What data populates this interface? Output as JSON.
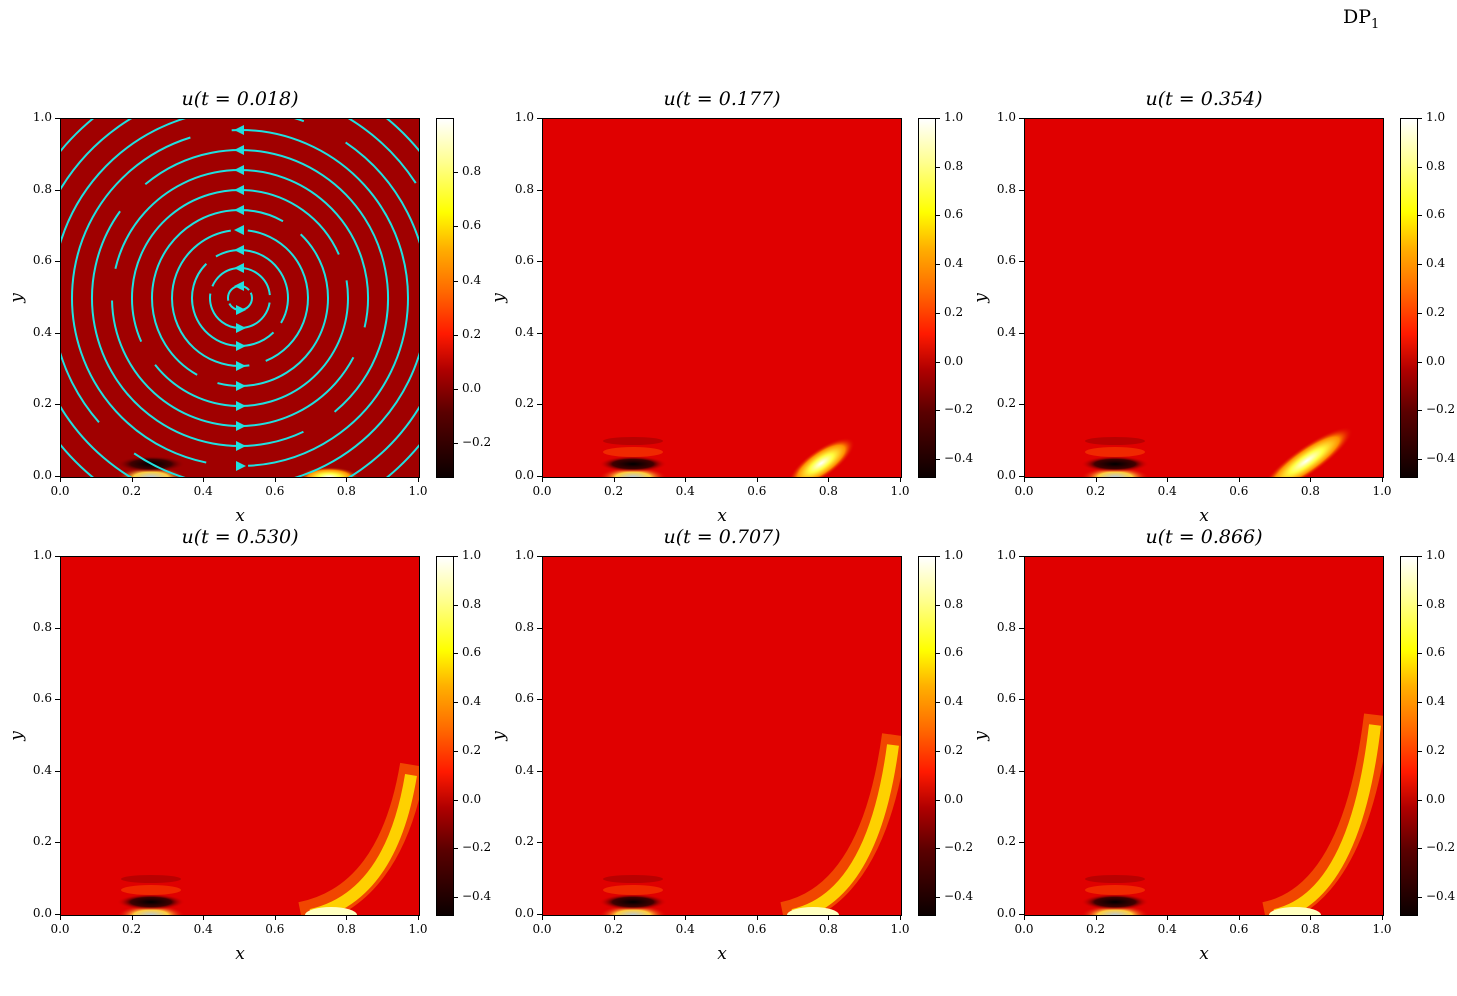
{
  "figure": {
    "suptitle": "DP",
    "suptitle_sub": "1"
  },
  "chart_data": [
    {
      "type": "heatmap",
      "title": "u(t = 0.018)",
      "xlabel": "x",
      "ylabel": "y",
      "xlim": [
        0.0,
        1.0
      ],
      "ylim": [
        0.0,
        1.0
      ],
      "xticks": [
        "0.0",
        "0.2",
        "0.4",
        "0.6",
        "0.8",
        "1.0"
      ],
      "yticks": [
        "0.0",
        "0.2",
        "0.4",
        "0.6",
        "0.8",
        "1.0"
      ],
      "colormap": "hot",
      "colorbar": {
        "range": [
          -0.32,
          1.0
        ],
        "ticks": [
          "-0.2",
          "0.0",
          "0.2",
          "0.4",
          "0.6",
          "0.8"
        ]
      },
      "overlay": "cyan streamlines, counter-clockwise rotation centered at (0.5, 0.5)",
      "features": [
        {
          "kind": "dark/bright pulse",
          "x": 0.25,
          "y": 0.0
        },
        {
          "kind": "bright pulse",
          "x": 0.75,
          "y": 0.0
        }
      ]
    },
    {
      "type": "heatmap",
      "title": "u(t = 0.177)",
      "xlabel": "x",
      "ylabel": "y",
      "xlim": [
        0.0,
        1.0
      ],
      "ylim": [
        0.0,
        1.0
      ],
      "xticks": [
        "0.0",
        "0.2",
        "0.4",
        "0.6",
        "0.8",
        "1.0"
      ],
      "yticks": [
        "0.0",
        "0.2",
        "0.4",
        "0.6",
        "0.8",
        "1.0"
      ],
      "colormap": "hot",
      "colorbar": {
        "range": [
          -0.47,
          1.0
        ],
        "ticks": [
          "-0.4",
          "-0.2",
          "0.0",
          "0.2",
          "0.4",
          "0.6",
          "0.8",
          "1.0"
        ]
      },
      "features": [
        {
          "kind": "oscillating dark/bright pulse",
          "x": 0.25,
          "y": 0.0
        },
        {
          "kind": "bright front",
          "x": 0.8,
          "y": 0.05
        }
      ]
    },
    {
      "type": "heatmap",
      "title": "u(t = 0.354)",
      "xlabel": "x",
      "ylabel": "y",
      "xlim": [
        0.0,
        1.0
      ],
      "ylim": [
        0.0,
        1.0
      ],
      "xticks": [
        "0.0",
        "0.2",
        "0.4",
        "0.6",
        "0.8",
        "1.0"
      ],
      "yticks": [
        "0.0",
        "0.2",
        "0.4",
        "0.6",
        "0.8",
        "1.0"
      ],
      "colormap": "hot",
      "colorbar": {
        "range": [
          -0.47,
          1.0
        ],
        "ticks": [
          "-0.4",
          "-0.2",
          "0.0",
          "0.2",
          "0.4",
          "0.6",
          "0.8",
          "1.0"
        ]
      },
      "features": [
        {
          "kind": "oscillating dark/bright pulse",
          "x": 0.25,
          "y": 0.0
        },
        {
          "kind": "bright front",
          "x": 0.85,
          "y": 0.08
        }
      ]
    },
    {
      "type": "heatmap",
      "title": "u(t = 0.530)",
      "xlabel": "x",
      "ylabel": "y",
      "xlim": [
        0.0,
        1.0
      ],
      "ylim": [
        0.0,
        1.0
      ],
      "xticks": [
        "0.0",
        "0.2",
        "0.4",
        "0.6",
        "0.8",
        "1.0"
      ],
      "yticks": [
        "0.0",
        "0.2",
        "0.4",
        "0.6",
        "0.8",
        "1.0"
      ],
      "colormap": "hot",
      "colorbar": {
        "range": [
          -0.47,
          1.0
        ],
        "ticks": [
          "-0.4",
          "-0.2",
          "0.0",
          "0.2",
          "0.4",
          "0.6",
          "0.8",
          "1.0"
        ]
      },
      "features": [
        {
          "kind": "oscillating dark/bright pulse",
          "x": 0.25,
          "y": 0.0
        },
        {
          "kind": "bright arc front",
          "x": 0.9,
          "y": 0.12
        }
      ]
    },
    {
      "type": "heatmap",
      "title": "u(t = 0.707)",
      "xlabel": "x",
      "ylabel": "y",
      "xlim": [
        0.0,
        1.0
      ],
      "ylim": [
        0.0,
        1.0
      ],
      "xticks": [
        "0.0",
        "0.2",
        "0.4",
        "0.6",
        "0.8",
        "1.0"
      ],
      "yticks": [
        "0.0",
        "0.2",
        "0.4",
        "0.6",
        "0.8",
        "1.0"
      ],
      "colormap": "hot",
      "colorbar": {
        "range": [
          -0.47,
          1.0
        ],
        "ticks": [
          "-0.4",
          "-0.2",
          "0.0",
          "0.2",
          "0.4",
          "0.6",
          "0.8",
          "1.0"
        ]
      },
      "features": [
        {
          "kind": "oscillating dark/bright pulse",
          "x": 0.25,
          "y": 0.0
        },
        {
          "kind": "bright arc front",
          "x": 0.95,
          "y": 0.2
        }
      ]
    },
    {
      "type": "heatmap",
      "title": "u(t = 0.866)",
      "xlabel": "x",
      "ylabel": "y",
      "xlim": [
        0.0,
        1.0
      ],
      "ylim": [
        0.0,
        1.0
      ],
      "xticks": [
        "0.0",
        "0.2",
        "0.4",
        "0.6",
        "0.8",
        "1.0"
      ],
      "yticks": [
        "0.0",
        "0.2",
        "0.4",
        "0.6",
        "0.8",
        "1.0"
      ],
      "colormap": "hot",
      "colorbar": {
        "range": [
          -0.47,
          1.0
        ],
        "ticks": [
          "-0.4",
          "-0.2",
          "0.0",
          "0.2",
          "0.4",
          "0.6",
          "0.8",
          "1.0"
        ]
      },
      "features": [
        {
          "kind": "oscillating dark/bright pulse",
          "x": 0.25,
          "y": 0.0
        },
        {
          "kind": "bright arc front",
          "x": 0.97,
          "y": 0.25
        }
      ]
    }
  ],
  "colors": {
    "background_first": "#a00000",
    "background_rest": "#e00000",
    "streamline": "#20e0e0"
  }
}
